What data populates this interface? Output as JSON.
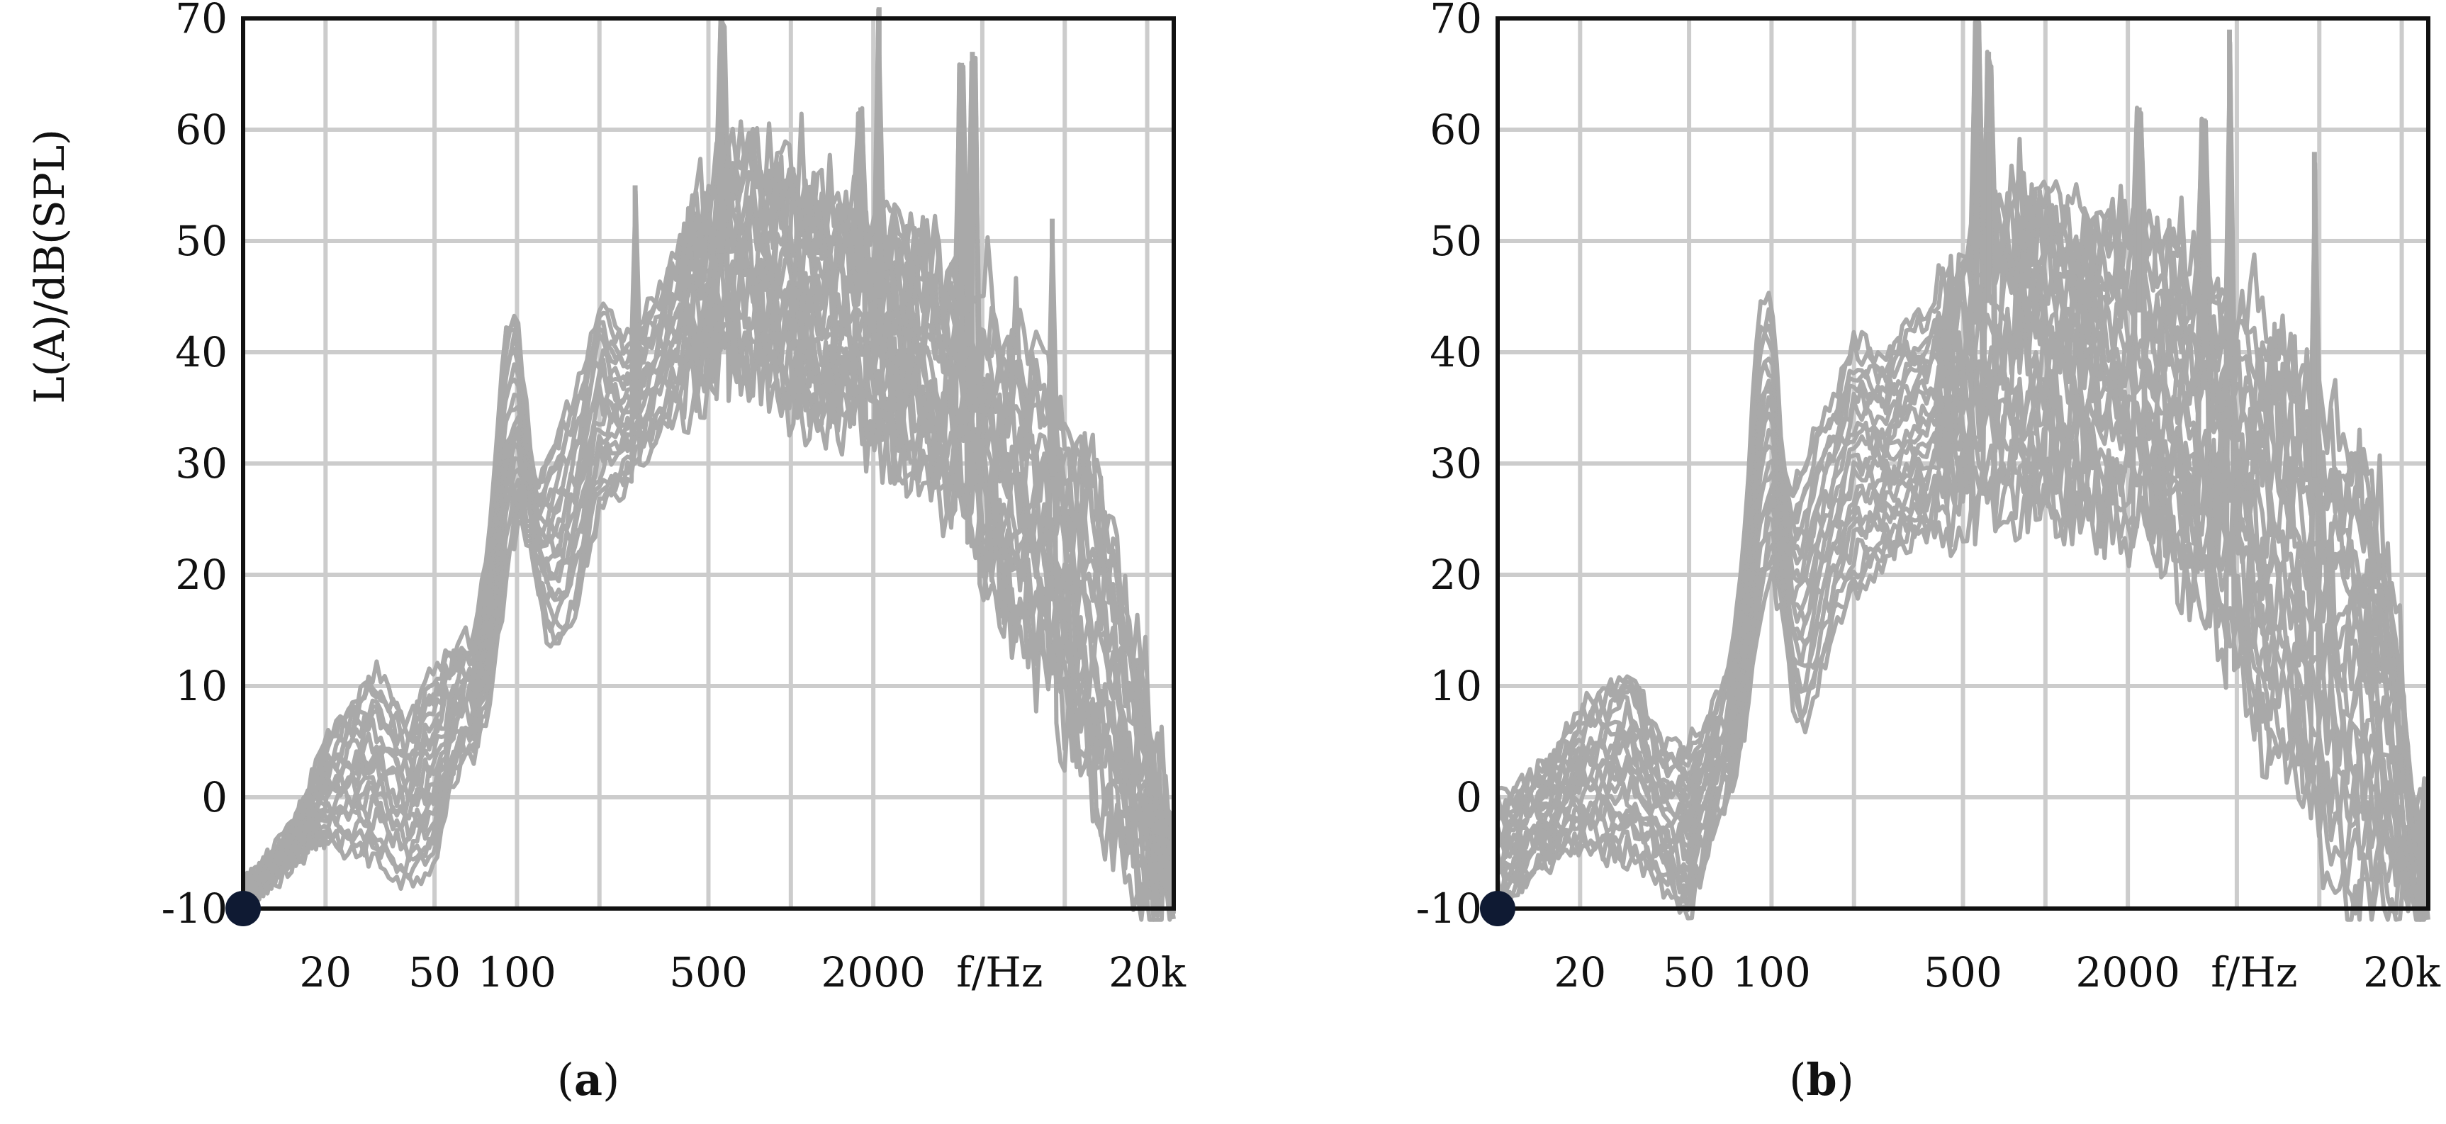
{
  "colors": {
    "line": "#a9a9a9",
    "grid": "#cccccc",
    "frame": "#111111",
    "origin_dot": "#0f1a33",
    "text": "#111111"
  },
  "chart_data": [
    {
      "type": "line",
      "panel_label_open": "(",
      "panel_label_letter": "a",
      "panel_label_close": ")",
      "ylabel": "L(A)/dB(SPL)",
      "xlabel": "f/Hz",
      "x_scale": "log",
      "xlim": [
        10,
        25000
      ],
      "ylim": [
        -10,
        70
      ],
      "x_tick_labels": [
        {
          "x": 20,
          "label": "20"
        },
        {
          "x": 50,
          "label": "50"
        },
        {
          "x": 100,
          "label": "100"
        },
        {
          "x": 500,
          "label": "500"
        },
        {
          "x": 2000,
          "label": "2000"
        },
        {
          "x": 20000,
          "label": "20k"
        }
      ],
      "x_gridlines": [
        20,
        50,
        100,
        200,
        500,
        1000,
        2000,
        5000,
        10000,
        20000
      ],
      "y_ticks": [
        -10,
        0,
        10,
        20,
        30,
        40,
        50,
        60,
        70
      ],
      "grid": true,
      "series_count": 20,
      "envelope": {
        "x": [
          10,
          15,
          20,
          30,
          40,
          50,
          60,
          70,
          80,
          90,
          100,
          110,
          120,
          130,
          150,
          170,
          200,
          250,
          300,
          400,
          500,
          600,
          700,
          800,
          1000,
          1200,
          1500,
          2000,
          2500,
          3000,
          4000,
          5000,
          6000,
          8000,
          10000,
          12000,
          15000,
          18000,
          20000,
          22000,
          25000
        ],
        "upper": [
          -8,
          -3,
          5,
          12,
          7,
          12,
          14,
          15,
          25,
          43,
          45,
          33,
          28,
          31,
          35,
          38,
          45,
          41,
          44,
          50,
          55,
          58,
          59,
          56,
          56,
          55,
          54,
          53,
          52,
          50,
          46,
          43,
          42,
          40,
          34,
          30,
          25,
          15,
          8,
          0,
          -5
        ],
        "lower": [
          -10,
          -6,
          -4,
          -6,
          -8,
          -6,
          2,
          4,
          8,
          18,
          24,
          22,
          18,
          14,
          13,
          18,
          25,
          28,
          31,
          35,
          37,
          38,
          38,
          37,
          34,
          33,
          32,
          30,
          29,
          28,
          25,
          20,
          15,
          10,
          5,
          0,
          -5,
          -10,
          -10,
          -10,
          -10
        ]
      },
      "peaks": [
        {
          "x": 270,
          "y": 55
        },
        {
          "x": 560,
          "y": 70
        },
        {
          "x": 1800,
          "y": 62
        },
        {
          "x": 2100,
          "y": 71
        },
        {
          "x": 4200,
          "y": 66
        },
        {
          "x": 4600,
          "y": 67
        },
        {
          "x": 9000,
          "y": 52
        }
      ]
    },
    {
      "type": "line",
      "panel_label_open": "(",
      "panel_label_letter": "b",
      "panel_label_close": ")",
      "ylabel": "L(A)/dB(SPL)",
      "xlabel": "f/Hz",
      "x_scale": "log",
      "xlim": [
        10,
        25000
      ],
      "ylim": [
        -10,
        70
      ],
      "x_tick_labels": [
        {
          "x": 20,
          "label": "20"
        },
        {
          "x": 50,
          "label": "50"
        },
        {
          "x": 100,
          "label": "100"
        },
        {
          "x": 500,
          "label": "500"
        },
        {
          "x": 2000,
          "label": "2000"
        },
        {
          "x": 20000,
          "label": "20k"
        }
      ],
      "x_gridlines": [
        20,
        50,
        100,
        200,
        500,
        1000,
        2000,
        5000,
        10000,
        20000
      ],
      "y_ticks": [
        -10,
        0,
        10,
        20,
        30,
        40,
        50,
        60,
        70
      ],
      "grid": true,
      "series_count": 22,
      "envelope": {
        "x": [
          10,
          15,
          20,
          30,
          40,
          50,
          60,
          70,
          80,
          90,
          100,
          110,
          120,
          130,
          150,
          170,
          200,
          250,
          300,
          400,
          500,
          600,
          700,
          800,
          1000,
          1200,
          1500,
          2000,
          2500,
          3000,
          4000,
          5000,
          6000,
          8000,
          10000,
          12000,
          15000,
          18000,
          20000,
          22000,
          25000
        ],
        "upper": [
          0,
          3,
          8,
          12,
          5,
          5,
          8,
          12,
          25,
          44,
          46,
          31,
          28,
          30,
          35,
          36,
          42,
          40,
          42,
          45,
          48,
          52,
          54,
          55,
          55,
          54,
          53,
          52,
          51,
          50,
          47,
          45,
          43,
          40,
          36,
          33,
          30,
          20,
          10,
          0,
          -5
        ],
        "lower": [
          -10,
          -6,
          -5,
          -6,
          -8,
          -11,
          -4,
          0,
          5,
          15,
          20,
          15,
          8,
          5,
          10,
          15,
          18,
          20,
          22,
          24,
          25,
          24,
          24,
          25,
          25,
          24,
          24,
          23,
          22,
          20,
          15,
          10,
          5,
          0,
          -5,
          -10,
          -10,
          -10,
          -10,
          -10,
          -10
        ]
      },
      "peaks": [
        {
          "x": 560,
          "y": 70
        },
        {
          "x": 620,
          "y": 67
        },
        {
          "x": 2200,
          "y": 62
        },
        {
          "x": 3800,
          "y": 61
        },
        {
          "x": 4700,
          "y": 69
        },
        {
          "x": 9600,
          "y": 58
        }
      ]
    }
  ]
}
